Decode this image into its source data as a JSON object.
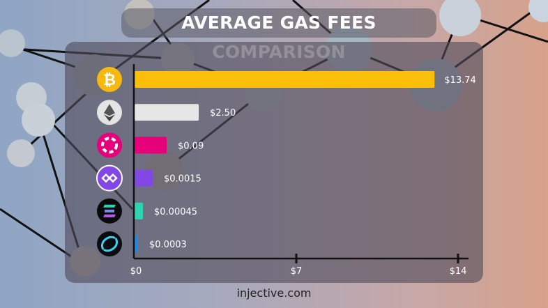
{
  "header": {
    "title": "AVERAGE GAS FEES COMPARISON"
  },
  "footer": {
    "source": "injective.com"
  },
  "chart_data": {
    "type": "bar",
    "orientation": "horizontal",
    "title": "AVERAGE GAS FEES COMPARISON",
    "categories": [
      "Bitcoin",
      "Ethereum",
      "Polkadot",
      "Polygon",
      "Solana",
      "Injective"
    ],
    "icons": [
      "bitcoin-icon",
      "ethereum-icon",
      "polkadot-icon",
      "polygon-icon",
      "solana-icon",
      "injective-icon"
    ],
    "values": [
      13.74,
      2.5,
      0.09,
      0.0015,
      0.00045,
      0.0003
    ],
    "labels": [
      "$13.74",
      "$2.50",
      "$0.09",
      "$0.0015",
      "$0.00045",
      "$0.0003"
    ],
    "colors": [
      "#fbbf0a",
      "#e6e6e6",
      "#e6007a",
      "#8247e5",
      "#2dd4b0",
      "#1e88e5"
    ],
    "xticks": [
      0,
      7,
      14
    ],
    "xtick_labels": [
      "$0",
      "$7",
      "$14"
    ],
    "xlim": [
      0,
      14
    ],
    "xlabel": "",
    "ylabel": ""
  }
}
